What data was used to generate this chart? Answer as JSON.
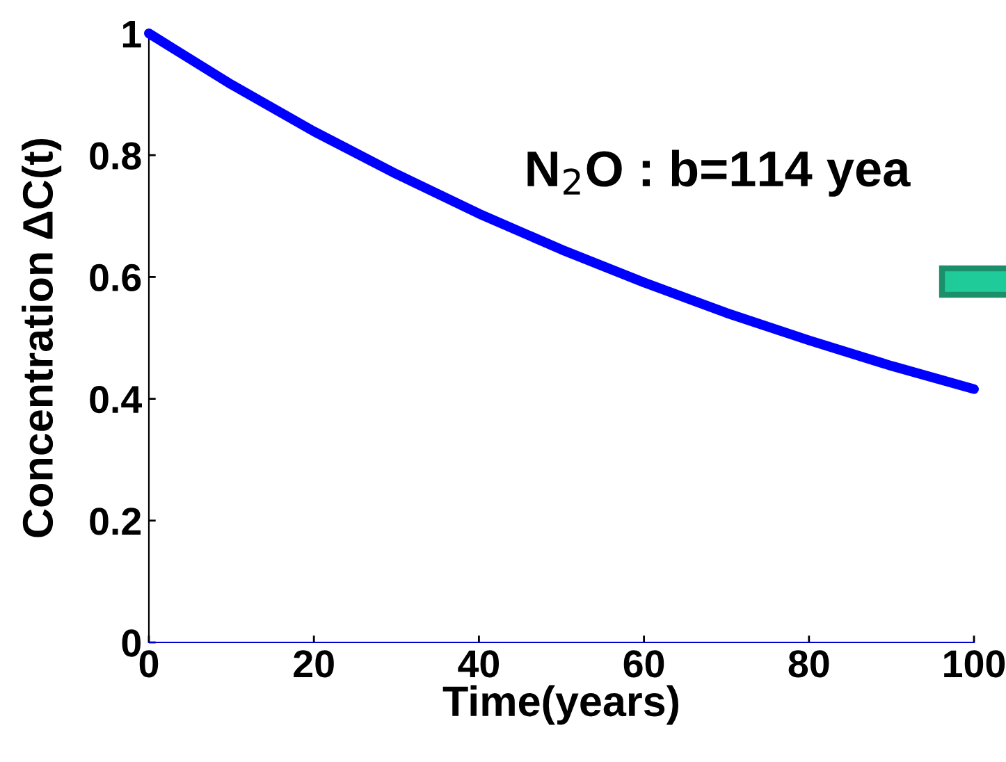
{
  "chart_data": {
    "type": "line",
    "xlabel": "Time(years)",
    "ylabel": "Concentration ΔC(t)",
    "annotations": [
      "N$_{2}$O : b=114 yea"
    ],
    "x": [
      0,
      10,
      20,
      30,
      40,
      50,
      60,
      70,
      80,
      90,
      100
    ],
    "series": [
      {
        "color": "#0000ff",
        "values": [
          1,
          0.916,
          0.839,
          0.769,
          0.704,
          0.645,
          0.591,
          0.541,
          0.496,
          0.454,
          0.416
        ]
      }
    ],
    "xlim": [
      0,
      100
    ],
    "ylim": [
      0,
      1
    ],
    "xticks": [
      0,
      20,
      40,
      60,
      80,
      100
    ],
    "yticks": [
      0,
      0.2,
      0.4,
      0.6,
      0.8,
      1
    ],
    "grid": false,
    "legend": false,
    "marker": "none",
    "line_style": "solid"
  }
}
